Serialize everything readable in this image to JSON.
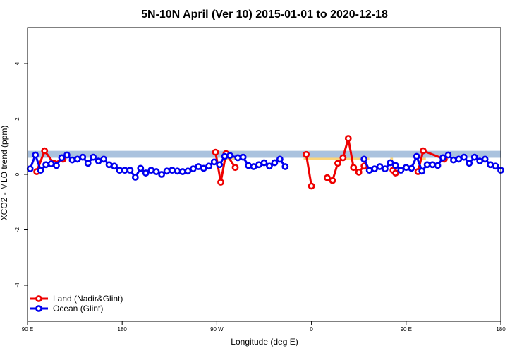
{
  "chart_data": {
    "type": "line",
    "title": "5N-10N April (Ver 10)   2015-01-01 to 2020-12-18",
    "xlabel": "Longitude (deg E)",
    "ylabel": "XCO2 - MLO trend (ppm)",
    "xlim": [
      90,
      450
    ],
    "ylim": [
      -5.3,
      5.3
    ],
    "x_ticks": [
      {
        "value": 90,
        "label": "90 E"
      },
      {
        "value": 162,
        "label": "180"
      },
      {
        "value": 234,
        "label": "90 W"
      },
      {
        "value": 306,
        "label": "0"
      },
      {
        "value": 378,
        "label": "90 E"
      },
      {
        "value": 450,
        "label": "180"
      }
    ],
    "y_ticks": [
      {
        "value": -4,
        "label": "-4"
      },
      {
        "value": -2,
        "label": "-2"
      },
      {
        "value": 0,
        "label": "0"
      },
      {
        "value": 2,
        "label": "2"
      },
      {
        "value": 4,
        "label": "4"
      }
    ],
    "reference_band": {
      "y_low": 0.6,
      "y_high": 0.85,
      "color": "#aac2de"
    },
    "land_coverage_color": "#fbd67a",
    "land_coverage": [
      [
        239,
        255
      ],
      [
        300,
        350
      ],
      [
        366,
        368
      ],
      [
        390,
        393
      ]
    ],
    "legend_position": "bottom-left",
    "series": [
      {
        "name": "Land (Nadir&Glint)",
        "color": "#ee0000",
        "points": [
          [
            97,
            0.1
          ],
          [
            103,
            0.85
          ],
          [
            110,
            0.4
          ],
          [
            117,
            0.55
          ],
          [
            233,
            0.8
          ],
          [
            237,
            -0.28
          ],
          [
            241,
            0.75
          ],
          [
            248,
            0.25
          ],
          [
            302,
            0.72
          ],
          [
            306,
            -0.42
          ],
          [
            318,
            -0.12
          ],
          [
            322,
            -0.22
          ],
          [
            326,
            0.4
          ],
          [
            330,
            0.6
          ],
          [
            334,
            1.3
          ],
          [
            338,
            0.25
          ],
          [
            342,
            0.08
          ],
          [
            346,
            0.3
          ],
          [
            368,
            0.15
          ],
          [
            370,
            0.05
          ],
          [
            387,
            0.1
          ],
          [
            391,
            0.85
          ],
          [
            407,
            0.55
          ]
        ],
        "segments": [
          [
            0,
            4
          ],
          [
            4,
            8
          ],
          [
            8,
            10
          ],
          [
            10,
            18
          ],
          [
            18,
            20
          ],
          [
            20,
            23
          ]
        ]
      },
      {
        "name": "Ocean (Glint)",
        "color": "#0000ee",
        "points": [
          [
            92,
            0.2
          ],
          [
            96,
            0.7
          ],
          [
            100,
            0.15
          ],
          [
            104,
            0.35
          ],
          [
            108,
            0.38
          ],
          [
            112,
            0.32
          ],
          [
            116,
            0.6
          ],
          [
            120,
            0.7
          ],
          [
            124,
            0.52
          ],
          [
            128,
            0.55
          ],
          [
            132,
            0.62
          ],
          [
            136,
            0.4
          ],
          [
            140,
            0.62
          ],
          [
            144,
            0.48
          ],
          [
            148,
            0.55
          ],
          [
            152,
            0.35
          ],
          [
            156,
            0.3
          ],
          [
            160,
            0.15
          ],
          [
            164,
            0.15
          ],
          [
            168,
            0.15
          ],
          [
            172,
            -0.1
          ],
          [
            176,
            0.22
          ],
          [
            180,
            0.05
          ],
          [
            184,
            0.15
          ],
          [
            188,
            0.1
          ],
          [
            192,
            0.0
          ],
          [
            196,
            0.12
          ],
          [
            200,
            0.15
          ],
          [
            204,
            0.12
          ],
          [
            208,
            0.1
          ],
          [
            212,
            0.12
          ],
          [
            216,
            0.2
          ],
          [
            220,
            0.28
          ],
          [
            224,
            0.22
          ],
          [
            228,
            0.3
          ],
          [
            232,
            0.45
          ],
          [
            236,
            0.35
          ],
          [
            240,
            0.65
          ],
          [
            244,
            0.68
          ],
          [
            250,
            0.6
          ],
          [
            254,
            0.62
          ],
          [
            258,
            0.32
          ],
          [
            262,
            0.28
          ],
          [
            266,
            0.35
          ],
          [
            270,
            0.42
          ],
          [
            274,
            0.3
          ],
          [
            278,
            0.42
          ],
          [
            282,
            0.55
          ],
          [
            286,
            0.28
          ],
          [
            346,
            0.55
          ],
          [
            350,
            0.15
          ],
          [
            354,
            0.2
          ],
          [
            358,
            0.28
          ],
          [
            362,
            0.2
          ],
          [
            366,
            0.42
          ],
          [
            370,
            0.32
          ],
          [
            374,
            0.15
          ],
          [
            378,
            0.25
          ],
          [
            382,
            0.22
          ],
          [
            386,
            0.65
          ],
          [
            390,
            0.12
          ],
          [
            394,
            0.35
          ],
          [
            398,
            0.35
          ],
          [
            402,
            0.32
          ],
          [
            406,
            0.6
          ],
          [
            410,
            0.7
          ],
          [
            414,
            0.52
          ],
          [
            418,
            0.55
          ],
          [
            422,
            0.62
          ],
          [
            426,
            0.4
          ],
          [
            430,
            0.62
          ],
          [
            434,
            0.48
          ],
          [
            438,
            0.55
          ],
          [
            442,
            0.35
          ],
          [
            446,
            0.3
          ],
          [
            450,
            0.15
          ]
        ],
        "segments": [
          [
            0,
            49
          ],
          [
            49,
            76
          ]
        ]
      }
    ]
  }
}
